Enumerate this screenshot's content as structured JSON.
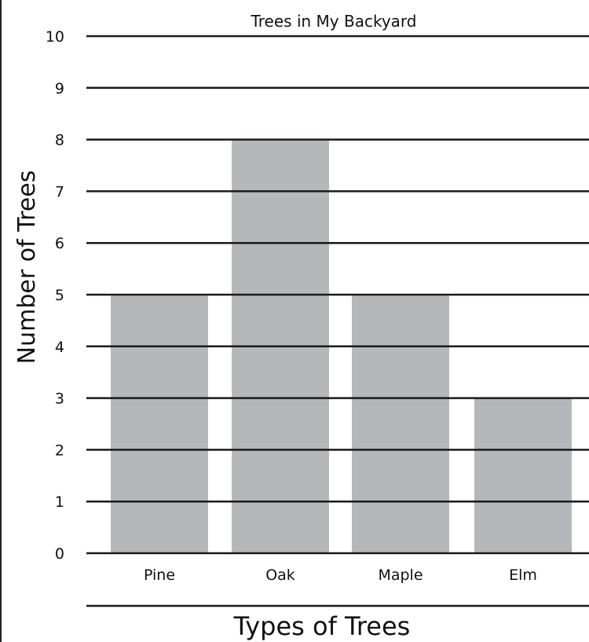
{
  "chart_data": {
    "type": "bar",
    "title": "Trees in My Backyard",
    "xlabel": "Types of Trees",
    "ylabel": "Number of Trees",
    "categories": [
      "Pine",
      "Oak",
      "Maple",
      "Elm"
    ],
    "values": [
      5,
      8,
      5,
      3
    ],
    "ylim": [
      0,
      10
    ],
    "yticks": [
      0,
      1,
      2,
      3,
      4,
      5,
      6,
      7,
      8,
      9,
      10
    ],
    "grid": true,
    "legend": "none",
    "colors": {
      "bar": "#b5b7bb",
      "grid": "#1a1a1a",
      "text": "#111111"
    }
  }
}
